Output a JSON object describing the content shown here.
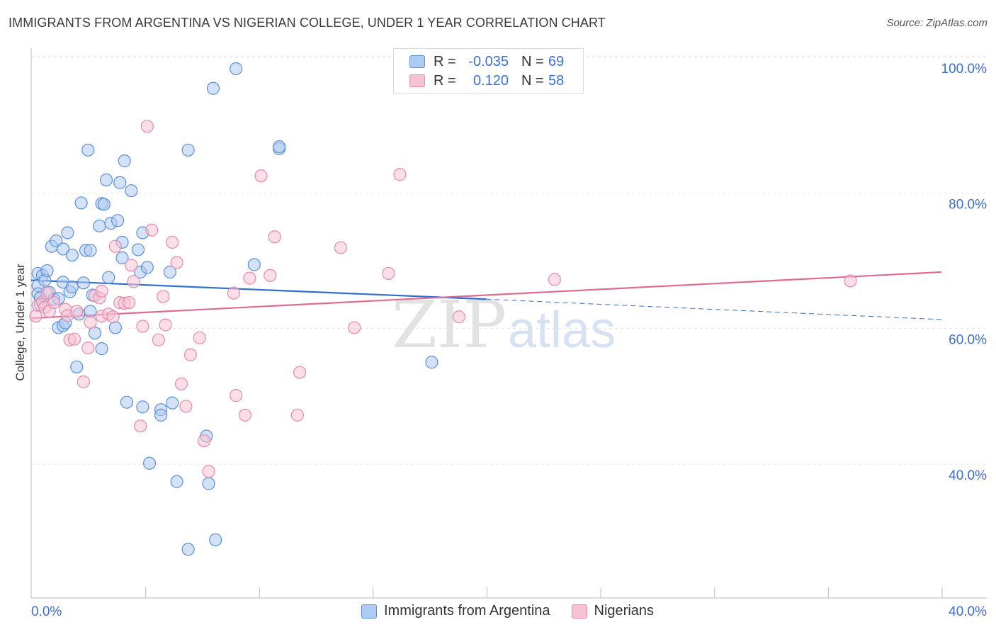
{
  "title": "IMMIGRANTS FROM ARGENTINA VS NIGERIAN COLLEGE, UNDER 1 YEAR CORRELATION CHART",
  "source": "Source: ZipAtlas.com",
  "watermark": {
    "zip": "ZIP",
    "atlas": "atlas"
  },
  "colors": {
    "blue_fill": "#aecbf3",
    "blue_stroke": "#5b8fd8",
    "blue_line": "#2f6fd0",
    "pink_fill": "#f7c3d3",
    "pink_stroke": "#e58aa8",
    "pink_line": "#e06a93",
    "axis_label": "#3a6fd8",
    "grid": "#e4e4e4"
  },
  "legend": {
    "rows": [
      {
        "r_label": "R =",
        "r_value": "-0.035",
        "n_label": "N =",
        "n_value": "69"
      },
      {
        "r_label": "R =",
        "r_value": "0.120",
        "n_label": "N =",
        "n_value": "58"
      }
    ]
  },
  "bottom_legend": [
    "Immigrants from Argentina",
    "Nigerians"
  ],
  "chart_data": {
    "type": "scatter",
    "xlabel": "",
    "ylabel": "College, Under 1 year",
    "xlim": [
      0,
      40
    ],
    "ylim": [
      22,
      103
    ],
    "x_tick_labels": [
      {
        "value": 0,
        "label": "0.0%"
      },
      {
        "value": 40,
        "label": "40.0%"
      }
    ],
    "y_tick_labels": [
      {
        "value": 100,
        "label": "100.0%"
      },
      {
        "value": 80,
        "label": "80.0%"
      },
      {
        "value": 60,
        "label": "60.0%"
      },
      {
        "value": 40,
        "label": "40.0%"
      }
    ],
    "grid": true,
    "legend_position": "top-center",
    "series": [
      {
        "name": "Immigrants from Argentina",
        "color": "blue",
        "points": [
          [
            0.3,
            69.8
          ],
          [
            0.3,
            68.0
          ],
          [
            0.3,
            66.8
          ],
          [
            0.4,
            66.2
          ],
          [
            0.4,
            65.2
          ],
          [
            0.5,
            69.5
          ],
          [
            0.6,
            68.8
          ],
          [
            0.7,
            70.2
          ],
          [
            0.8,
            67.0
          ],
          [
            0.9,
            73.8
          ],
          [
            1.0,
            66.0
          ],
          [
            1.1,
            74.6
          ],
          [
            1.2,
            61.8
          ],
          [
            1.4,
            62.1
          ],
          [
            1.4,
            73.4
          ],
          [
            1.4,
            68.5
          ],
          [
            1.5,
            62.5
          ],
          [
            1.6,
            75.8
          ],
          [
            1.7,
            67.1
          ],
          [
            1.8,
            67.8
          ],
          [
            1.8,
            72.5
          ],
          [
            2.0,
            56.0
          ],
          [
            2.1,
            63.8
          ],
          [
            2.2,
            80.2
          ],
          [
            2.3,
            68.4
          ],
          [
            2.4,
            73.2
          ],
          [
            2.5,
            88.0
          ],
          [
            2.6,
            64.2
          ],
          [
            2.6,
            73.2
          ],
          [
            2.7,
            66.6
          ],
          [
            2.8,
            61.0
          ],
          [
            3.0,
            76.8
          ],
          [
            3.1,
            58.7
          ],
          [
            3.1,
            80.1
          ],
          [
            3.2,
            80.0
          ],
          [
            3.3,
            83.6
          ],
          [
            3.4,
            69.2
          ],
          [
            3.5,
            77.2
          ],
          [
            3.7,
            61.8
          ],
          [
            3.8,
            77.6
          ],
          [
            3.9,
            83.2
          ],
          [
            4.0,
            74.4
          ],
          [
            4.0,
            72.1
          ],
          [
            4.1,
            86.4
          ],
          [
            4.2,
            50.8
          ],
          [
            4.4,
            82.0
          ],
          [
            4.7,
            73.3
          ],
          [
            4.8,
            70.0
          ],
          [
            4.9,
            75.8
          ],
          [
            4.9,
            50.1
          ],
          [
            5.1,
            70.7
          ],
          [
            5.2,
            41.8
          ],
          [
            5.7,
            49.7
          ],
          [
            5.7,
            48.9
          ],
          [
            6.1,
            70.0
          ],
          [
            6.2,
            50.7
          ],
          [
            6.4,
            39.1
          ],
          [
            6.9,
            88.0
          ],
          [
            6.9,
            29.1
          ],
          [
            7.7,
            45.8
          ],
          [
            7.8,
            38.8
          ],
          [
            8.0,
            97.1
          ],
          [
            8.1,
            30.5
          ],
          [
            9.0,
            100.0
          ],
          [
            9.8,
            71.1
          ],
          [
            10.9,
            88.2
          ],
          [
            10.9,
            88.5
          ],
          [
            17.6,
            56.7
          ],
          [
            1.2,
            66.1
          ]
        ]
      },
      {
        "name": "Nigerians",
        "color": "pink",
        "points": [
          [
            0.2,
            63.5
          ],
          [
            0.3,
            65.1
          ],
          [
            0.5,
            65.6
          ],
          [
            0.6,
            64.8
          ],
          [
            0.7,
            66.9
          ],
          [
            0.8,
            64.2
          ],
          [
            1.0,
            65.5
          ],
          [
            1.5,
            64.5
          ],
          [
            1.6,
            63.6
          ],
          [
            1.7,
            60.0
          ],
          [
            1.9,
            60.1
          ],
          [
            2.0,
            64.2
          ],
          [
            2.3,
            53.8
          ],
          [
            2.5,
            58.8
          ],
          [
            2.6,
            62.6
          ],
          [
            2.8,
            66.5
          ],
          [
            3.0,
            66.2
          ],
          [
            3.1,
            67.2
          ],
          [
            3.1,
            63.5
          ],
          [
            3.4,
            63.8
          ],
          [
            3.6,
            63.4
          ],
          [
            3.7,
            73.8
          ],
          [
            3.9,
            65.5
          ],
          [
            4.1,
            65.4
          ],
          [
            4.3,
            65.5
          ],
          [
            4.4,
            71.0
          ],
          [
            4.5,
            68.6
          ],
          [
            4.8,
            47.3
          ],
          [
            4.9,
            62.0
          ],
          [
            5.1,
            91.5
          ],
          [
            5.3,
            76.2
          ],
          [
            5.6,
            60.0
          ],
          [
            5.8,
            66.4
          ],
          [
            5.9,
            62.2
          ],
          [
            6.2,
            74.4
          ],
          [
            6.4,
            71.4
          ],
          [
            6.6,
            53.5
          ],
          [
            6.8,
            50.2
          ],
          [
            7.0,
            57.8
          ],
          [
            7.4,
            60.3
          ],
          [
            7.6,
            45.1
          ],
          [
            7.8,
            40.6
          ],
          [
            8.9,
            66.9
          ],
          [
            9.0,
            51.8
          ],
          [
            9.4,
            48.9
          ],
          [
            9.6,
            69.1
          ],
          [
            10.1,
            84.2
          ],
          [
            10.5,
            69.5
          ],
          [
            10.7,
            75.2
          ],
          [
            11.7,
            48.9
          ],
          [
            11.8,
            55.2
          ],
          [
            13.6,
            73.6
          ],
          [
            14.2,
            61.8
          ],
          [
            15.7,
            69.8
          ],
          [
            16.2,
            84.4
          ],
          [
            18.8,
            63.4
          ],
          [
            23.0,
            68.9
          ],
          [
            36.0,
            68.7
          ]
        ]
      }
    ],
    "trend_lines": [
      {
        "series": "Immigrants from Argentina",
        "x_start": 0,
        "y_start": 68.8,
        "x_end": 20,
        "y_end": 66.0,
        "dashed_to_x": 40,
        "dashed_to_y": 63.0
      },
      {
        "series": "Nigerians",
        "x_start": 0,
        "y_start": 63.2,
        "x_end": 40,
        "y_end": 70.0
      }
    ]
  }
}
